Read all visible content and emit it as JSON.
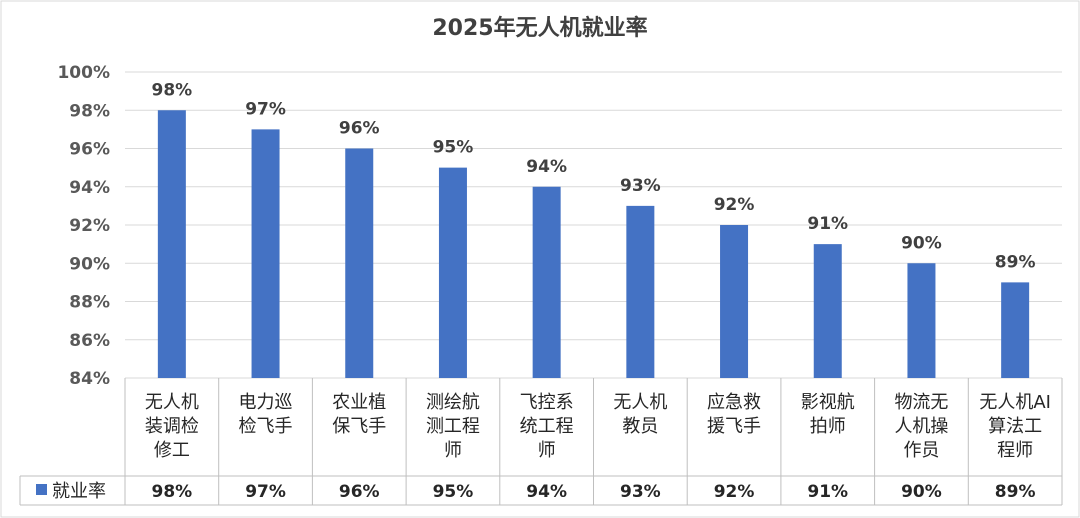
{
  "chart_data": {
    "type": "bar",
    "title": "2025年无人机就业率",
    "categories": [
      "无人机装调检修工",
      "电力巡检飞手",
      "农业植保飞手",
      "测绘航测工程师",
      "飞控系统工程师",
      "无人机教员",
      "应急救援飞手",
      "影视航拍师",
      "物流无人机操作员",
      "无人机AI算法工程师"
    ],
    "category_lines": [
      [
        "无人机",
        "装调检",
        "修工"
      ],
      [
        "电力巡",
        "检飞手"
      ],
      [
        "农业植",
        "保飞手"
      ],
      [
        "测绘航",
        "测工程",
        "师"
      ],
      [
        "飞控系",
        "统工程",
        "师"
      ],
      [
        "无人机",
        "教员"
      ],
      [
        "应急救",
        "援飞手"
      ],
      [
        "影视航",
        "拍师"
      ],
      [
        "物流无",
        "人机操",
        "作员"
      ],
      [
        "无人机AI",
        "算法工",
        "程师"
      ]
    ],
    "series": [
      {
        "name": "就业率",
        "values": [
          98,
          97,
          96,
          95,
          94,
          93,
          92,
          91,
          90,
          89
        ],
        "color": "#4472C4"
      }
    ],
    "value_labels": [
      "98%",
      "97%",
      "96%",
      "95%",
      "94%",
      "93%",
      "92%",
      "91%",
      "90%",
      "89%"
    ],
    "ylim": [
      84,
      100
    ],
    "yticks": [
      "84%",
      "86%",
      "88%",
      "90%",
      "92%",
      "94%",
      "96%",
      "98%",
      "100%"
    ],
    "grid": true,
    "data_table": true,
    "legend_position": "data-table-left"
  }
}
